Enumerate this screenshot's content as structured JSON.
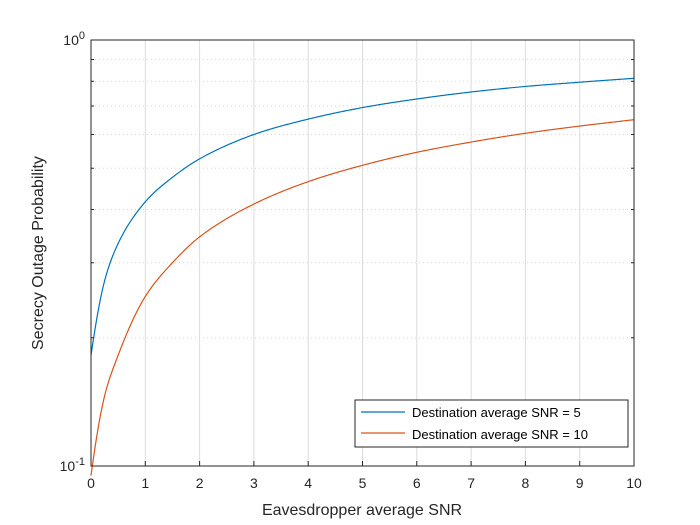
{
  "chart_data": {
    "type": "line",
    "xlabel": "Eavesdropper average SNR",
    "ylabel": "Secrecy Outage Probability",
    "xlim": [
      0,
      10
    ],
    "ylim": [
      0.1,
      1
    ],
    "yscale": "log",
    "grid": true,
    "legend_position": "bottom-right",
    "x_ticks": [
      "0",
      "1",
      "2",
      "3",
      "4",
      "5",
      "6",
      "7",
      "8",
      "9",
      "10"
    ],
    "y_ticks": [
      {
        "base": "10",
        "exp": "-1"
      },
      {
        "base": "10",
        "exp": "0"
      }
    ],
    "x": [
      0,
      0.25,
      0.5,
      1,
      1.5,
      2,
      3,
      4,
      5,
      6,
      7,
      8,
      9,
      10
    ],
    "series": [
      {
        "name": "Destination average SNR = 5",
        "color": "#0072BD",
        "values": [
          0.182,
          0.272,
          0.333,
          0.417,
          0.476,
          0.526,
          0.6,
          0.652,
          0.694,
          0.727,
          0.755,
          0.778,
          0.796,
          0.813
        ]
      },
      {
        "name": "Destination average SNR = 10",
        "color": "#D95319",
        "values": [
          0.095,
          0.146,
          0.182,
          0.25,
          0.3,
          0.345,
          0.412,
          0.465,
          0.508,
          0.545,
          0.576,
          0.604,
          0.628,
          0.65
        ]
      }
    ]
  }
}
